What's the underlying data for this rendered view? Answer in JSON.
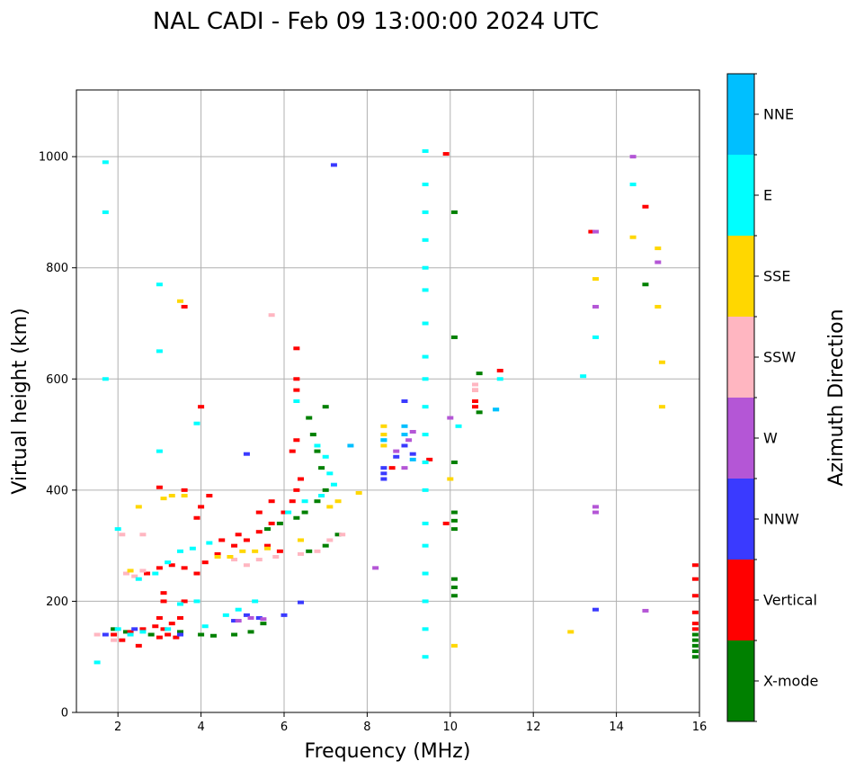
{
  "chart_data": {
    "type": "scatter",
    "title": "NAL CADI - Feb 09 13:00:00 2024 UTC",
    "xlabel": "Frequency (MHz)",
    "ylabel": "Virtual height (km)",
    "xlim": [
      1,
      16
    ],
    "ylim": [
      0,
      1120
    ],
    "xticks": [
      2,
      4,
      6,
      8,
      10,
      12,
      14,
      16
    ],
    "yticks": [
      0,
      200,
      400,
      600,
      800,
      1000
    ],
    "grid": true,
    "colorbar": {
      "title": "Azimuth Direction",
      "categories": [
        {
          "name": "X-mode",
          "color": "#008000"
        },
        {
          "name": "Vertical",
          "color": "#ff0000"
        },
        {
          "name": "NNW",
          "color": "#3a3aff"
        },
        {
          "name": "W",
          "color": "#b456d6"
        },
        {
          "name": "SSW",
          "color": "#ffb6c1"
        },
        {
          "name": "SSE",
          "color": "#ffd700"
        },
        {
          "name": "E",
          "color": "#00ffff"
        },
        {
          "name": "NNE",
          "color": "#00bfff"
        }
      ]
    },
    "series": [
      {
        "name": "X-mode",
        "points": [
          [
            1.9,
            150
          ],
          [
            2.2,
            145
          ],
          [
            2.8,
            140
          ],
          [
            3.5,
            145
          ],
          [
            4.0,
            140
          ],
          [
            4.3,
            138
          ],
          [
            4.8,
            140
          ],
          [
            5.2,
            145
          ],
          [
            5.5,
            160
          ],
          [
            6.6,
            290
          ],
          [
            7.0,
            300
          ],
          [
            7.3,
            320
          ],
          [
            6.5,
            360
          ],
          [
            6.8,
            380
          ],
          [
            7.0,
            400
          ],
          [
            6.9,
            440
          ],
          [
            6.8,
            470
          ],
          [
            6.7,
            500
          ],
          [
            6.6,
            530
          ],
          [
            7.0,
            550
          ],
          [
            5.6,
            330
          ],
          [
            5.9,
            340
          ],
          [
            6.3,
            350
          ],
          [
            10.1,
            210
          ],
          [
            10.1,
            225
          ],
          [
            10.1,
            240
          ],
          [
            10.1,
            330
          ],
          [
            10.1,
            345
          ],
          [
            10.1,
            360
          ],
          [
            10.1,
            450
          ],
          [
            10.1,
            675
          ],
          [
            10.1,
            900
          ],
          [
            10.7,
            540
          ],
          [
            10.7,
            610
          ],
          [
            14.7,
            770
          ],
          [
            15.9,
            100
          ],
          [
            15.9,
            110
          ],
          [
            15.9,
            120
          ],
          [
            15.9,
            130
          ],
          [
            15.9,
            140
          ]
        ]
      },
      {
        "name": "Vertical",
        "points": [
          [
            1.9,
            140
          ],
          [
            2.1,
            130
          ],
          [
            2.3,
            145
          ],
          [
            2.6,
            150
          ],
          [
            2.9,
            155
          ],
          [
            3.1,
            150
          ],
          [
            3.3,
            160
          ],
          [
            3.0,
            135
          ],
          [
            3.2,
            140
          ],
          [
            3.4,
            135
          ],
          [
            2.5,
            120
          ],
          [
            3.0,
            170
          ],
          [
            3.1,
            200
          ],
          [
            3.1,
            215
          ],
          [
            3.6,
            200
          ],
          [
            3.5,
            170
          ],
          [
            2.7,
            250
          ],
          [
            3.0,
            260
          ],
          [
            3.3,
            265
          ],
          [
            3.6,
            260
          ],
          [
            3.9,
            250
          ],
          [
            4.1,
            270
          ],
          [
            4.4,
            285
          ],
          [
            4.8,
            300
          ],
          [
            5.1,
            310
          ],
          [
            5.4,
            325
          ],
          [
            5.7,
            340
          ],
          [
            6.0,
            360
          ],
          [
            6.2,
            380
          ],
          [
            6.3,
            400
          ],
          [
            6.4,
            420
          ],
          [
            4.9,
            320
          ],
          [
            5.4,
            360
          ],
          [
            5.7,
            380
          ],
          [
            6.2,
            470
          ],
          [
            6.3,
            490
          ],
          [
            5.6,
            300
          ],
          [
            5.9,
            290
          ],
          [
            3.9,
            350
          ],
          [
            4.0,
            370
          ],
          [
            4.2,
            390
          ],
          [
            4.5,
            310
          ],
          [
            3.0,
            405
          ],
          [
            3.6,
            400
          ],
          [
            6.3,
            655
          ],
          [
            6.3,
            600
          ],
          [
            6.3,
            580
          ],
          [
            3.6,
            730
          ],
          [
            4.0,
            550
          ],
          [
            8.6,
            440
          ],
          [
            9.5,
            455
          ],
          [
            9.9,
            340
          ],
          [
            10.6,
            580
          ],
          [
            10.6,
            560
          ],
          [
            10.6,
            550
          ],
          [
            11.2,
            615
          ],
          [
            9.9,
            1005
          ],
          [
            14.7,
            910
          ],
          [
            13.4,
            865
          ],
          [
            15.9,
            150
          ],
          [
            15.9,
            160
          ],
          [
            15.9,
            180
          ],
          [
            15.9,
            210
          ],
          [
            15.9,
            240
          ],
          [
            15.9,
            265
          ]
        ]
      },
      {
        "name": "NNW",
        "points": [
          [
            1.7,
            140
          ],
          [
            2.4,
            150
          ],
          [
            3.5,
            140
          ],
          [
            4.8,
            165
          ],
          [
            5.1,
            175
          ],
          [
            5.4,
            170
          ],
          [
            6.0,
            175
          ],
          [
            6.4,
            198
          ],
          [
            8.4,
            420
          ],
          [
            8.4,
            430
          ],
          [
            8.4,
            440
          ],
          [
            8.7,
            460
          ],
          [
            8.9,
            480
          ],
          [
            8.9,
            560
          ],
          [
            9.1,
            465
          ],
          [
            13.5,
            185
          ],
          [
            7.2,
            985
          ],
          [
            5.1,
            465
          ]
        ]
      },
      {
        "name": "W",
        "points": [
          [
            4.9,
            165
          ],
          [
            5.2,
            170
          ],
          [
            5.5,
            168
          ],
          [
            8.2,
            260
          ],
          [
            8.7,
            470
          ],
          [
            8.9,
            440
          ],
          [
            9.0,
            490
          ],
          [
            9.1,
            505
          ],
          [
            10.0,
            530
          ],
          [
            13.5,
            370
          ],
          [
            13.5,
            360
          ],
          [
            13.5,
            730
          ],
          [
            13.5,
            865
          ],
          [
            14.4,
            1000
          ],
          [
            15.0,
            810
          ],
          [
            14.7,
            183
          ]
        ]
      },
      {
        "name": "SSW",
        "points": [
          [
            1.5,
            140
          ],
          [
            1.9,
            130
          ],
          [
            2.2,
            250
          ],
          [
            2.4,
            245
          ],
          [
            2.6,
            255
          ],
          [
            2.1,
            320
          ],
          [
            2.6,
            320
          ],
          [
            4.8,
            275
          ],
          [
            5.1,
            265
          ],
          [
            5.4,
            275
          ],
          [
            5.8,
            280
          ],
          [
            6.4,
            285
          ],
          [
            6.8,
            290
          ],
          [
            7.1,
            310
          ],
          [
            7.4,
            320
          ],
          [
            10.6,
            580
          ],
          [
            10.6,
            590
          ],
          [
            5.7,
            715
          ]
        ]
      },
      {
        "name": "SSE",
        "points": [
          [
            2.3,
            255
          ],
          [
            2.5,
            370
          ],
          [
            3.1,
            385
          ],
          [
            3.3,
            390
          ],
          [
            3.6,
            390
          ],
          [
            4.4,
            280
          ],
          [
            4.7,
            280
          ],
          [
            5.0,
            290
          ],
          [
            5.3,
            290
          ],
          [
            5.6,
            295
          ],
          [
            6.4,
            310
          ],
          [
            7.1,
            370
          ],
          [
            7.3,
            380
          ],
          [
            7.8,
            395
          ],
          [
            8.4,
            480
          ],
          [
            8.4,
            500
          ],
          [
            8.4,
            515
          ],
          [
            10.0,
            420
          ],
          [
            10.1,
            120
          ],
          [
            12.9,
            145
          ],
          [
            13.5,
            780
          ],
          [
            14.4,
            855
          ],
          [
            15.0,
            835
          ],
          [
            15.0,
            730
          ],
          [
            15.1,
            630
          ],
          [
            15.1,
            550
          ],
          [
            3.5,
            740
          ]
        ]
      },
      {
        "name": "E",
        "points": [
          [
            1.5,
            90
          ],
          [
            2.0,
            150
          ],
          [
            2.3,
            140
          ],
          [
            2.6,
            145
          ],
          [
            3.2,
            150
          ],
          [
            3.5,
            195
          ],
          [
            3.9,
            200
          ],
          [
            4.1,
            155
          ],
          [
            4.6,
            175
          ],
          [
            4.9,
            185
          ],
          [
            5.3,
            200
          ],
          [
            2.5,
            240
          ],
          [
            2.9,
            250
          ],
          [
            3.2,
            270
          ],
          [
            3.5,
            290
          ],
          [
            3.8,
            295
          ],
          [
            4.2,
            305
          ],
          [
            6.1,
            360
          ],
          [
            6.5,
            380
          ],
          [
            6.9,
            390
          ],
          [
            7.2,
            410
          ],
          [
            7.1,
            430
          ],
          [
            7.0,
            460
          ],
          [
            6.8,
            480
          ],
          [
            6.3,
            560
          ],
          [
            2.0,
            330
          ],
          [
            1.7,
            990
          ],
          [
            1.7,
            900
          ],
          [
            1.7,
            600
          ],
          [
            3.0,
            770
          ],
          [
            3.0,
            650
          ],
          [
            3.0,
            470
          ],
          [
            3.9,
            520
          ],
          [
            8.4,
            490
          ],
          [
            9.4,
            100
          ],
          [
            9.4,
            150
          ],
          [
            9.4,
            200
          ],
          [
            9.4,
            250
          ],
          [
            9.4,
            300
          ],
          [
            9.4,
            340
          ],
          [
            9.4,
            400
          ],
          [
            9.4,
            450
          ],
          [
            9.4,
            500
          ],
          [
            9.4,
            550
          ],
          [
            9.4,
            600
          ],
          [
            9.4,
            640
          ],
          [
            9.4,
            700
          ],
          [
            9.4,
            760
          ],
          [
            9.4,
            800
          ],
          [
            9.4,
            850
          ],
          [
            9.4,
            900
          ],
          [
            9.4,
            950
          ],
          [
            9.4,
            1010
          ],
          [
            10.2,
            515
          ],
          [
            11.1,
            545
          ],
          [
            11.2,
            600
          ],
          [
            13.2,
            605
          ],
          [
            13.5,
            675
          ],
          [
            14.4,
            950
          ]
        ]
      },
      {
        "name": "NNE",
        "points": [
          [
            7.6,
            480
          ],
          [
            8.4,
            490
          ],
          [
            8.9,
            500
          ],
          [
            8.9,
            515
          ],
          [
            9.1,
            455
          ],
          [
            11.1,
            545
          ]
        ]
      }
    ]
  }
}
